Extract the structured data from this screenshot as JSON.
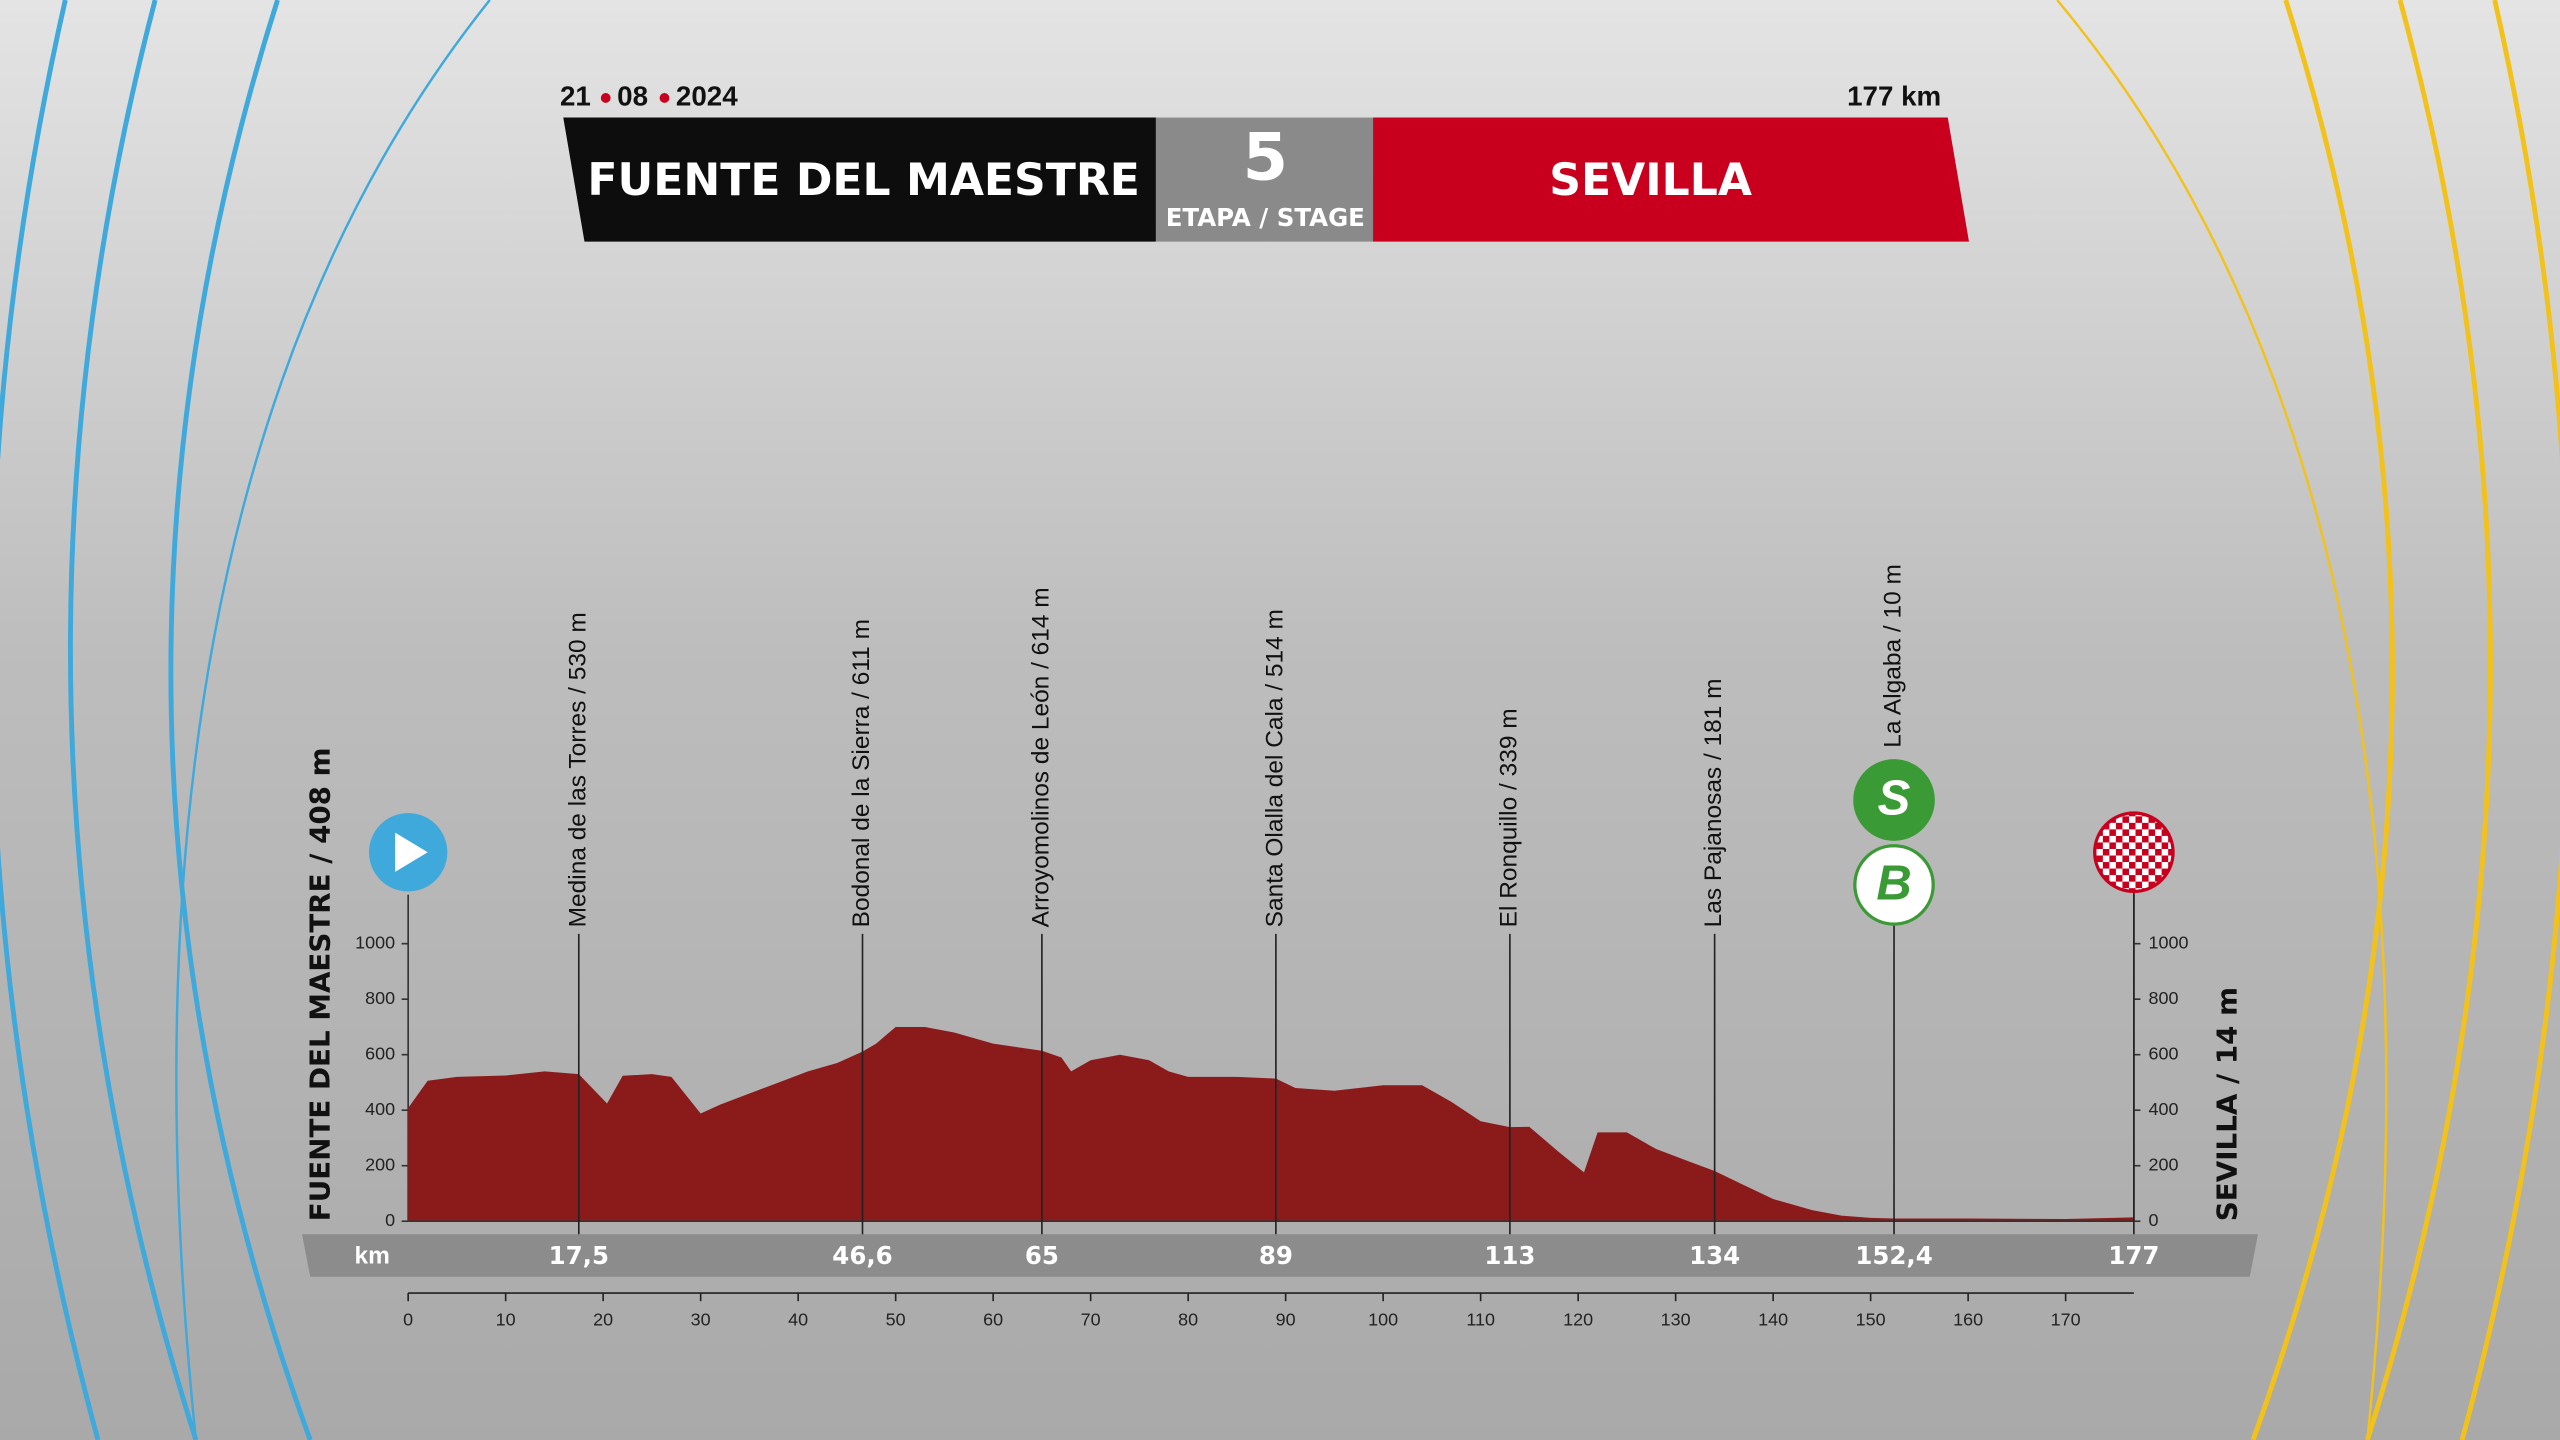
{
  "header": {
    "date": [
      "21",
      "08",
      "2024"
    ],
    "distance": "177 km",
    "start": "FUENTE DEL MAESTRE",
    "stage_number": 5,
    "stage_label": "ETAPA / STAGE",
    "finish": "SEVILLA"
  },
  "chart_data": {
    "type": "area",
    "color": "#8b1a1a",
    "x": [
      0,
      2,
      5,
      10,
      14,
      17.5,
      20.4,
      22,
      25,
      27,
      30,
      32,
      35,
      38,
      41,
      44,
      46.6,
      48,
      50,
      53,
      56,
      60,
      65,
      67,
      68,
      70,
      73,
      76,
      78,
      80,
      85,
      89,
      91,
      95,
      100,
      104,
      107,
      110,
      113,
      115,
      118,
      120.6,
      122,
      125,
      128,
      131,
      134,
      137,
      140,
      144,
      147,
      150,
      152.4,
      160,
      170,
      177
    ],
    "values": [
      408,
      506,
      520,
      525,
      540,
      530,
      424,
      524,
      530,
      520,
      388,
      420,
      460,
      500,
      540,
      570,
      611,
      640,
      700,
      700,
      680,
      640,
      614,
      590,
      540,
      580,
      600,
      580,
      540,
      520,
      520,
      514,
      480,
      470,
      490,
      490,
      430,
      360,
      339,
      340,
      250,
      176,
      320,
      320,
      260,
      220,
      181,
      130,
      80,
      40,
      20,
      12,
      10,
      10,
      8,
      14
    ],
    "xlim": [
      0,
      177
    ],
    "xticks": [
      0,
      10,
      20,
      30,
      40,
      50,
      60,
      70,
      80,
      90,
      100,
      110,
      120,
      130,
      140,
      150,
      160,
      170
    ],
    "ylim": [
      0,
      1000
    ],
    "yticks": [
      0,
      200,
      400,
      600,
      800,
      1000
    ],
    "y2lim": [
      0,
      1000
    ],
    "y2ticks": [
      0,
      200,
      400,
      600,
      800,
      1000
    ],
    "ylabel": "FUENTE DEL MAESTRE / 408 m",
    "y2label": "SEVILLA / 14 m",
    "km_label": "km",
    "markers": [
      {
        "km": {
          "value": 17.5,
          "label": "17,5"
        },
        "name": "Medina de las Torres / 530 m"
      },
      {
        "km": {
          "value": 46.6,
          "label": "46,6"
        },
        "name": "Bodonal de la Sierra / 611 m"
      },
      {
        "km": 65,
        "name": "Arroyomolinos de León / 614 m"
      },
      {
        "km": 89,
        "name": "Santa Olalla del Cala / 514 m"
      },
      {
        "km": 113,
        "name": "El Ronquillo / 339 m"
      },
      {
        "km": 134,
        "name": "Las Pajanosas / 181 m"
      },
      {
        "km": {
          "value": 152.4,
          "label": "152,4"
        },
        "name": "La Algaba / 10 m",
        "icons": [
          "S",
          "B"
        ]
      },
      {
        "km": 177
      }
    ]
  }
}
